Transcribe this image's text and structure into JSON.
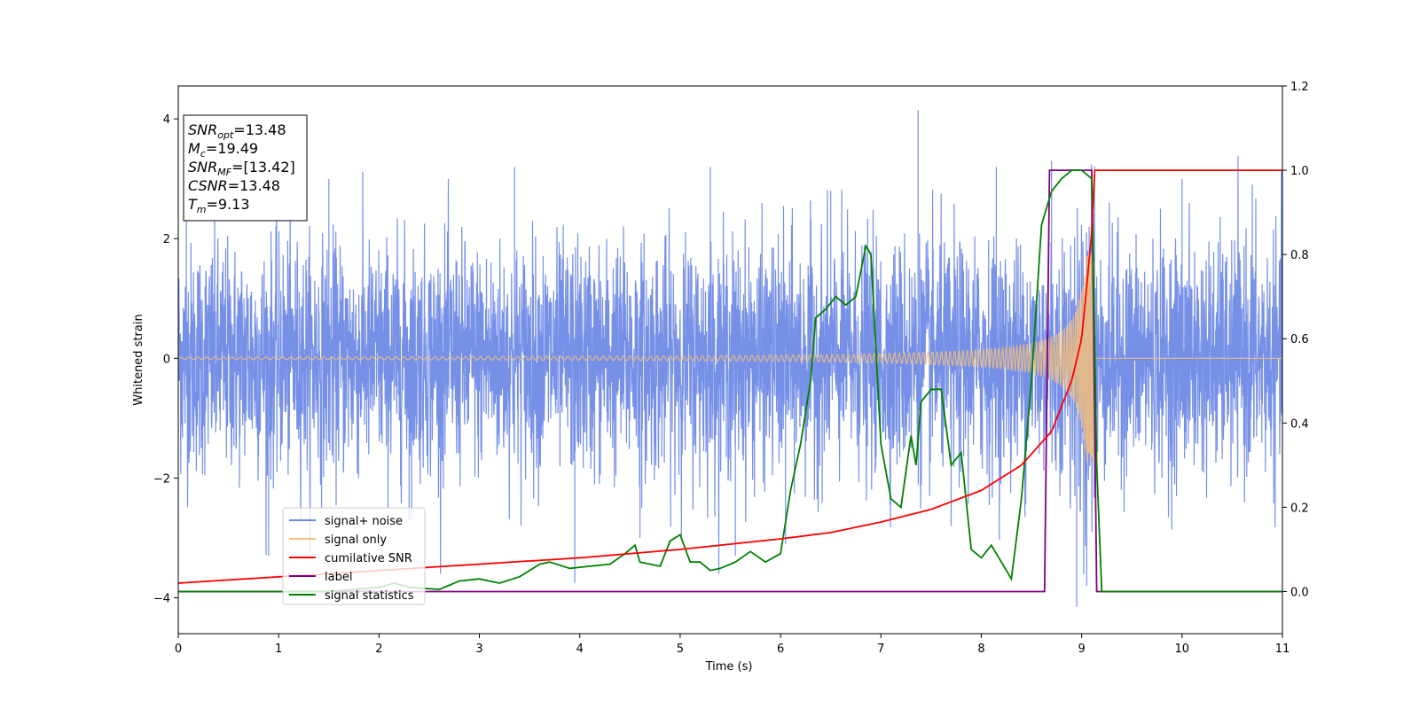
{
  "chart_data": {
    "type": "line",
    "xlabel": "Time (s)",
    "ylabel": "Whitened strain",
    "xlim": [
      0,
      11
    ],
    "ylim_left": [
      -4.6,
      4.55
    ],
    "ylim_right": [
      -0.1,
      1.2
    ],
    "x_ticks": [
      0,
      1,
      2,
      3,
      4,
      5,
      6,
      7,
      8,
      9,
      10,
      11
    ],
    "y_ticks_left": [
      -4,
      -2,
      0,
      2,
      4
    ],
    "y_ticks_right": [
      "0.0",
      "0.2",
      "0.4",
      "0.6",
      "0.8",
      "1.0",
      "1.2"
    ],
    "grid": false,
    "legend_placement": "lower-left",
    "annotation_lines": [
      {
        "main": "SNR",
        "sub": "opt",
        "rest": "=13.48"
      },
      {
        "main": "M",
        "sub": "c",
        "rest": "=19.49"
      },
      {
        "main": "SNR",
        "sub": "MF",
        "rest": "=[13.42]"
      },
      {
        "main": "CSNR",
        "sub": "",
        "rest": "=13.48"
      },
      {
        "main": "T",
        "sub": "m",
        "rest": "=9.13"
      }
    ],
    "series": [
      {
        "name": "signal+ noise",
        "axis": "left",
        "color": "#6f8ae6",
        "description_values": {
          "noise_sigma": 1.0,
          "peak_max": 4.15,
          "peak_max_time": 7.37,
          "trough_min": -4.15,
          "trough_min_time": 9.0
        },
        "values": [],
        "peaks": [
          [
            0.08,
            2.6
          ],
          [
            0.9,
            -3.3
          ],
          [
            1.5,
            3.0
          ],
          [
            2.3,
            -2.7
          ],
          [
            3.35,
            3.2
          ],
          [
            3.95,
            -3.75
          ],
          [
            4.6,
            -3.0
          ],
          [
            5.3,
            3.2
          ],
          [
            5.55,
            -3.3
          ],
          [
            6.05,
            -3.1
          ],
          [
            6.5,
            2.8
          ],
          [
            7.37,
            4.15
          ],
          [
            7.7,
            -2.8
          ],
          [
            8.15,
            3.2
          ],
          [
            8.7,
            3.3
          ],
          [
            8.95,
            -4.15
          ],
          [
            9.05,
            -3.8
          ],
          [
            10.0,
            3.0
          ],
          [
            10.7,
            2.9
          ]
        ]
      },
      {
        "name": "signal only",
        "axis": "left",
        "color": "#f5c07a",
        "values": [],
        "chirp": {
          "t_merge": 9.13,
          "amp_start": 0.02,
          "amp_end": 1.75
        }
      },
      {
        "name": "cumilative SNR",
        "axis": "right",
        "color": "#ff0000",
        "x": [
          0,
          1,
          2,
          3,
          4,
          5,
          6,
          6.5,
          7,
          7.5,
          8,
          8.4,
          8.7,
          8.9,
          9.0,
          9.1,
          9.13,
          9.2,
          10,
          11
        ],
        "values": [
          0.02,
          0.035,
          0.05,
          0.065,
          0.08,
          0.1,
          0.125,
          0.14,
          0.165,
          0.195,
          0.24,
          0.3,
          0.38,
          0.5,
          0.6,
          0.85,
          1.0,
          1.0,
          1.0,
          1.0
        ]
      },
      {
        "name": "label",
        "axis": "right",
        "color": "#800080",
        "x": [
          0,
          8.63,
          8.68,
          9.1,
          9.15,
          11
        ],
        "values": [
          0.0,
          0.0,
          1.0,
          1.0,
          0.0,
          0.0
        ]
      },
      {
        "name": "signal statistics",
        "axis": "right",
        "color": "#008000",
        "x": [
          0,
          0.5,
          1.0,
          1.5,
          2.0,
          2.15,
          2.3,
          2.6,
          2.8,
          3.0,
          3.2,
          3.4,
          3.6,
          3.7,
          3.9,
          4.1,
          4.3,
          4.45,
          4.55,
          4.6,
          4.8,
          4.9,
          5.0,
          5.1,
          5.2,
          5.3,
          5.4,
          5.55,
          5.7,
          5.85,
          6.0,
          6.1,
          6.2,
          6.3,
          6.35,
          6.45,
          6.55,
          6.65,
          6.75,
          6.85,
          6.9,
          7.0,
          7.1,
          7.2,
          7.3,
          7.35,
          7.4,
          7.5,
          7.6,
          7.7,
          7.8,
          7.9,
          8.0,
          8.1,
          8.2,
          8.3,
          8.4,
          8.5,
          8.6,
          8.7,
          8.8,
          8.9,
          9.0,
          9.1,
          9.15,
          9.2,
          9.5,
          11
        ],
        "values": [
          0.0,
          0.0,
          0.0,
          0.0,
          0.01,
          0.02,
          0.01,
          0.005,
          0.025,
          0.03,
          0.02,
          0.035,
          0.065,
          0.07,
          0.055,
          0.06,
          0.065,
          0.09,
          0.11,
          0.07,
          0.06,
          0.12,
          0.135,
          0.07,
          0.07,
          0.05,
          0.055,
          0.07,
          0.095,
          0.07,
          0.09,
          0.24,
          0.35,
          0.5,
          0.65,
          0.67,
          0.7,
          0.68,
          0.7,
          0.82,
          0.8,
          0.35,
          0.22,
          0.2,
          0.37,
          0.3,
          0.45,
          0.48,
          0.48,
          0.3,
          0.33,
          0.1,
          0.08,
          0.11,
          0.07,
          0.03,
          0.22,
          0.5,
          0.87,
          0.95,
          0.98,
          1.0,
          1.0,
          0.98,
          0.3,
          0.0,
          0.0,
          0.0
        ]
      }
    ]
  }
}
